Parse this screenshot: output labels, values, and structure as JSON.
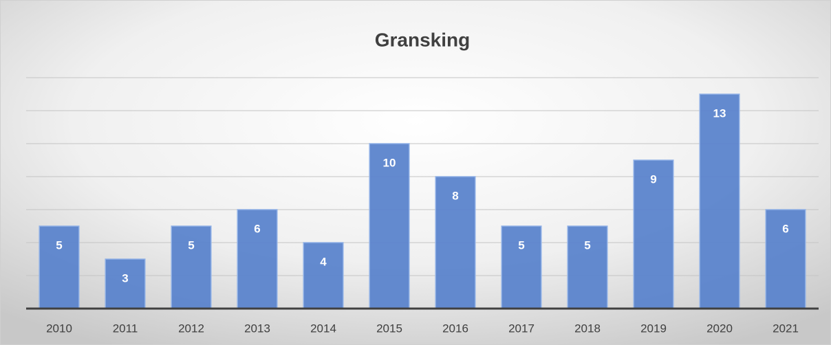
{
  "chart_data": {
    "type": "bar",
    "title": "Gransking",
    "categories": [
      "2010",
      "2011",
      "2012",
      "2013",
      "2014",
      "2015",
      "2016",
      "2017",
      "2018",
      "2019",
      "2020",
      "2021"
    ],
    "values": [
      5,
      3,
      5,
      6,
      4,
      10,
      8,
      5,
      5,
      9,
      13,
      6
    ],
    "color": "#5b84cc",
    "ylim": [
      0,
      14
    ],
    "yticks": [
      0,
      2,
      4,
      6,
      8,
      10,
      12,
      14
    ],
    "grid": true
  }
}
